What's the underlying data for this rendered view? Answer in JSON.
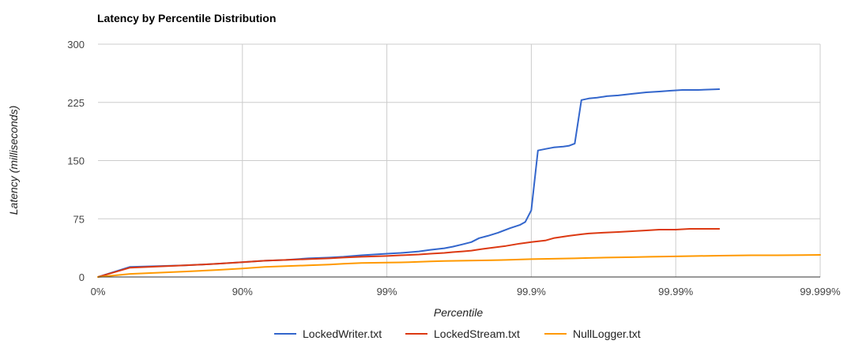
{
  "chart_data": {
    "type": "line",
    "title": "Latency by Percentile Distribution",
    "xlabel": "Percentile",
    "ylabel": "Latency (milliseconds)",
    "x_scale": "log-percentile",
    "x_ticks": [
      "0%",
      "90%",
      "99%",
      "99.9%",
      "99.99%",
      "99.999%"
    ],
    "xlim": [
      "0%",
      "99.999%"
    ],
    "y_ticks": [
      "0",
      "75",
      "150",
      "225",
      "300"
    ],
    "ylim": [
      0,
      300
    ],
    "grid": true,
    "legend_position": "bottom",
    "series": [
      {
        "name": "LockedWriter.txt",
        "color": "#3366cc",
        "points": [
          [
            0,
            0
          ],
          [
            40,
            13
          ],
          [
            75,
            15
          ],
          [
            85,
            17
          ],
          [
            90,
            19
          ],
          [
            93,
            21
          ],
          [
            95,
            22
          ],
          [
            96.5,
            24
          ],
          [
            97.5,
            25
          ],
          [
            98,
            26
          ],
          [
            98.5,
            28
          ],
          [
            99,
            30
          ],
          [
            99.2,
            31
          ],
          [
            99.4,
            33
          ],
          [
            99.5,
            35
          ],
          [
            99.6,
            37
          ],
          [
            99.65,
            39
          ],
          [
            99.7,
            42
          ],
          [
            99.74,
            45
          ],
          [
            99.77,
            50
          ],
          [
            99.8,
            53
          ],
          [
            99.83,
            57
          ],
          [
            99.86,
            63
          ],
          [
            99.88,
            67
          ],
          [
            99.89,
            71
          ],
          [
            99.9,
            86
          ],
          [
            99.91,
            163
          ],
          [
            99.92,
            165
          ],
          [
            99.93,
            167
          ],
          [
            99.94,
            168
          ],
          [
            99.945,
            169
          ],
          [
            99.95,
            172
          ],
          [
            99.955,
            228
          ],
          [
            99.96,
            230
          ],
          [
            99.965,
            231
          ],
          [
            99.97,
            233
          ],
          [
            99.975,
            234
          ],
          [
            99.98,
            236
          ],
          [
            99.984,
            238
          ],
          [
            99.987,
            239
          ],
          [
            99.989,
            240
          ],
          [
            99.991,
            241
          ],
          [
            99.993,
            241
          ],
          [
            99.995,
            242
          ]
        ]
      },
      {
        "name": "LockedStream.txt",
        "color": "#dc3912",
        "points": [
          [
            0,
            0
          ],
          [
            40,
            12
          ],
          [
            75,
            15
          ],
          [
            85,
            17
          ],
          [
            90,
            19
          ],
          [
            93,
            21
          ],
          [
            95,
            22
          ],
          [
            96.5,
            23
          ],
          [
            97.5,
            24
          ],
          [
            98,
            25
          ],
          [
            98.5,
            26
          ],
          [
            99,
            27
          ],
          [
            99.2,
            28
          ],
          [
            99.4,
            29
          ],
          [
            99.5,
            30
          ],
          [
            99.6,
            31
          ],
          [
            99.65,
            32
          ],
          [
            99.7,
            33
          ],
          [
            99.74,
            34
          ],
          [
            99.78,
            36
          ],
          [
            99.8,
            37
          ],
          [
            99.85,
            40
          ],
          [
            99.88,
            43
          ],
          [
            99.9,
            45
          ],
          [
            99.92,
            47
          ],
          [
            99.93,
            50
          ],
          [
            99.945,
            53
          ],
          [
            99.955,
            55
          ],
          [
            99.96,
            56
          ],
          [
            99.968,
            57
          ],
          [
            99.975,
            58
          ],
          [
            99.98,
            59
          ],
          [
            99.984,
            60
          ],
          [
            99.987,
            61
          ],
          [
            99.99,
            61
          ],
          [
            99.992,
            62
          ],
          [
            99.995,
            62
          ]
        ]
      },
      {
        "name": "NullLogger.txt",
        "color": "#ff9900",
        "points": [
          [
            0,
            0
          ],
          [
            40,
            4
          ],
          [
            75,
            7
          ],
          [
            85,
            9
          ],
          [
            90,
            11
          ],
          [
            93,
            13
          ],
          [
            95,
            14
          ],
          [
            96.5,
            15
          ],
          [
            97.5,
            16
          ],
          [
            98,
            17
          ],
          [
            98.5,
            18
          ],
          [
            99,
            18.5
          ],
          [
            99.3,
            19
          ],
          [
            99.5,
            20
          ],
          [
            99.6,
            20.5
          ],
          [
            99.7,
            21
          ],
          [
            99.8,
            21.5
          ],
          [
            99.85,
            22
          ],
          [
            99.9,
            23
          ],
          [
            99.93,
            23.5
          ],
          [
            99.95,
            24
          ],
          [
            99.96,
            24.5
          ],
          [
            99.97,
            25
          ],
          [
            99.98,
            25.5
          ],
          [
            99.985,
            26
          ],
          [
            99.99,
            26.5
          ],
          [
            99.993,
            27
          ],
          [
            99.995,
            27.5
          ],
          [
            99.997,
            28
          ],
          [
            99.998,
            28
          ],
          [
            99.999,
            28.5
          ]
        ]
      }
    ]
  }
}
